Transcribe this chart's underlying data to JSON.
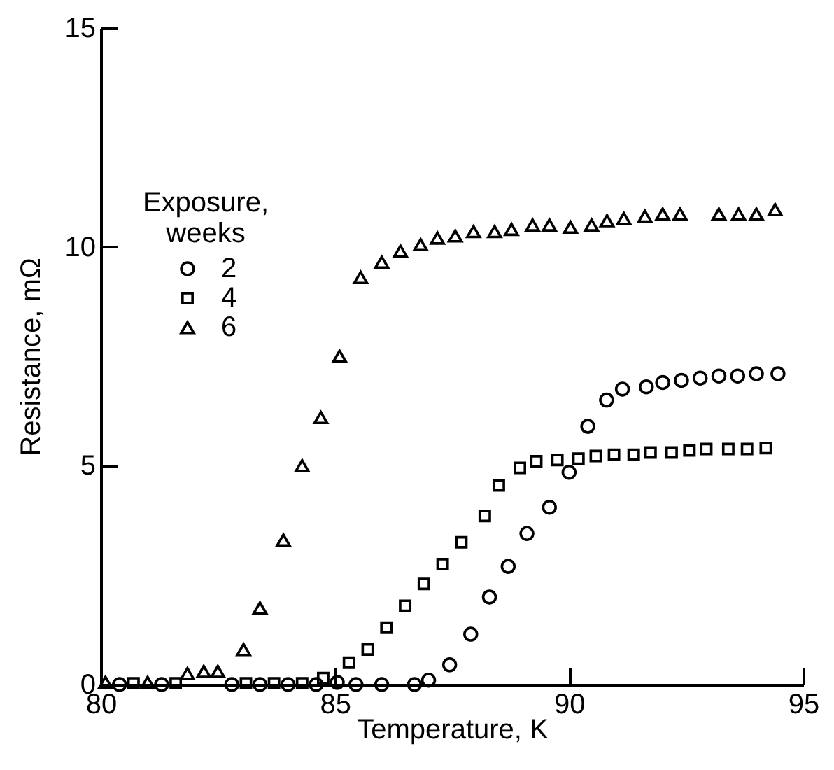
{
  "chart_data": {
    "type": "scatter",
    "xlabel": "Temperature, K",
    "ylabel": "Resistance, mΩ",
    "legend_title": "Exposure, weeks",
    "legend": "top left",
    "xlim": [
      80,
      95
    ],
    "ylim": [
      0,
      15
    ],
    "xticks": [
      80,
      85,
      90,
      95
    ],
    "yticks": [
      0,
      5,
      10,
      15
    ],
    "grid": false,
    "series": [
      {
        "name": "2",
        "color": "#000000",
        "marker": "circle",
        "x": [
          80.4,
          81.3,
          82.8,
          83.4,
          84.0,
          84.6,
          85.05,
          85.45,
          86.0,
          86.7,
          87.0,
          87.45,
          87.9,
          88.3,
          88.7,
          89.1,
          89.58,
          90.0,
          90.4,
          90.8,
          91.14,
          91.65,
          92.0,
          92.4,
          92.8,
          93.2,
          93.6,
          94.0,
          94.46
        ],
        "values": [
          0,
          0,
          0,
          0,
          0,
          0,
          0.05,
          0,
          0,
          0,
          0.1,
          0.45,
          1.15,
          2.0,
          2.7,
          3.45,
          4.05,
          4.85,
          5.9,
          6.5,
          6.75,
          6.8,
          6.9,
          6.95,
          7.0,
          7.05,
          7.05,
          7.1,
          7.1
        ]
      },
      {
        "name": "4",
        "color": "#000000",
        "marker": "square",
        "x": [
          80.7,
          81.6,
          83.1,
          83.7,
          84.3,
          84.75,
          85.3,
          85.7,
          86.1,
          86.5,
          86.9,
          87.3,
          87.7,
          88.2,
          88.5,
          88.95,
          89.3,
          89.75,
          90.2,
          90.57,
          90.96,
          91.38,
          91.74,
          92.19,
          92.57,
          92.93,
          93.4,
          93.8,
          94.2
        ],
        "values": [
          0.03,
          0.03,
          0.03,
          0.03,
          0.03,
          0.15,
          0.5,
          0.8,
          1.3,
          1.8,
          2.3,
          2.75,
          3.25,
          3.85,
          4.55,
          4.95,
          5.1,
          5.13,
          5.16,
          5.22,
          5.25,
          5.25,
          5.3,
          5.3,
          5.35,
          5.38,
          5.38,
          5.38,
          5.4
        ]
      },
      {
        "name": "6",
        "color": "#000000",
        "marker": "triangle",
        "x": [
          80.1,
          81.0,
          81.85,
          82.2,
          82.5,
          83.05,
          83.4,
          83.9,
          84.3,
          84.7,
          85.1,
          85.55,
          86.0,
          86.4,
          86.83,
          87.19,
          87.57,
          87.96,
          88.41,
          88.77,
          89.22,
          89.58,
          90.03,
          90.48,
          90.81,
          91.17,
          91.62,
          92.0,
          92.37,
          93.2,
          93.62,
          94.0,
          94.4
        ],
        "values": [
          0.05,
          0.05,
          0.25,
          0.3,
          0.3,
          0.8,
          1.75,
          3.3,
          5.0,
          6.1,
          7.5,
          9.3,
          9.65,
          9.9,
          10.05,
          10.2,
          10.25,
          10.35,
          10.35,
          10.4,
          10.5,
          10.5,
          10.45,
          10.5,
          10.6,
          10.65,
          10.7,
          10.75,
          10.75,
          10.75,
          10.75,
          10.75,
          10.85
        ]
      }
    ]
  }
}
